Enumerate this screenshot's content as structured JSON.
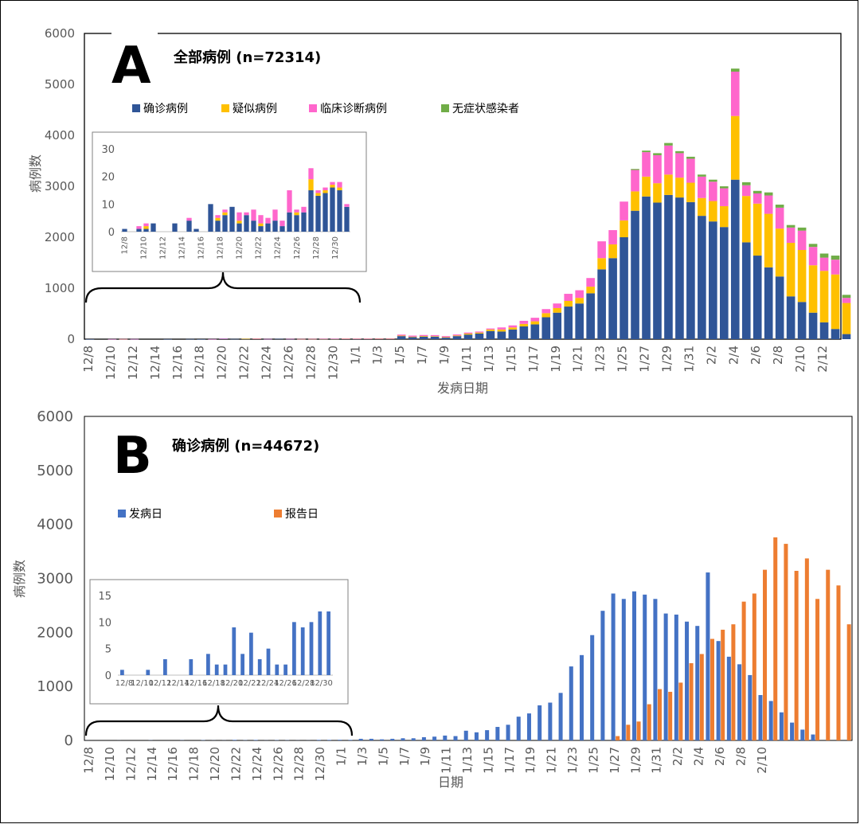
{
  "colors": {
    "confirmed": "#2f5597",
    "suspected": "#ffc000",
    "clinical": "#ff66cc",
    "asymptomatic": "#70ad47",
    "onset": "#4472c4",
    "report": "#ed7d31",
    "axis": "#595959"
  },
  "chart_data": [
    {
      "type": "bar",
      "stacked": true,
      "panel_label": "A",
      "title": "全部病例 (n=72314)",
      "xlabel": "发病日期",
      "ylabel": "病例数",
      "ylim": [
        0,
        6000
      ],
      "yticks": [
        0,
        1000,
        2000,
        3000,
        4000,
        5000,
        6000
      ],
      "xtick_labels": [
        "12/8",
        "12/10",
        "12/12",
        "12/14",
        "12/16",
        "12/18",
        "12/20",
        "12/22",
        "12/24",
        "12/26",
        "12/28",
        "12/30",
        "1/1",
        "1/3",
        "1/5",
        "1/7",
        "1/9",
        "1/11",
        "1/13",
        "1/15",
        "1/17",
        "1/19",
        "1/21",
        "1/23",
        "1/25",
        "1/27",
        "1/29",
        "1/31",
        "2/2",
        "2/4",
        "2/6",
        "2/8",
        "2/10",
        "2/12"
      ],
      "legend": [
        "确诊病例",
        "疑似病例",
        "临床诊断病例",
        "无症状感染者"
      ],
      "series": [
        {
          "name": "确诊病例",
          "values": [
            1,
            0,
            1,
            1,
            2,
            0,
            0,
            2,
            0,
            3,
            1,
            1,
            10,
            4,
            6,
            9,
            3,
            6,
            4,
            2,
            3,
            4,
            5,
            7,
            6,
            7,
            9,
            9,
            60,
            40,
            50,
            50,
            30,
            60,
            90,
            110,
            160,
            150,
            190,
            250,
            290,
            430,
            520,
            640,
            700,
            900,
            1370,
            1590,
            2000,
            2520,
            2800,
            2680,
            2830,
            2780,
            2690,
            2420,
            2310,
            2200,
            3130,
            1900,
            1640,
            1410,
            1230,
            840,
            730,
            520,
            330,
            200,
            100
          ],
          "values_note": "daily counts read from chart"
        },
        {
          "name": "疑似病例",
          "values": [
            0,
            0,
            0,
            1,
            0,
            0,
            0,
            0,
            0,
            0,
            0,
            0,
            0,
            0,
            1,
            1,
            0,
            0,
            0,
            1,
            1,
            1,
            1,
            1,
            2,
            1,
            2,
            2,
            10,
            10,
            12,
            10,
            10,
            12,
            20,
            20,
            30,
            40,
            40,
            50,
            60,
            80,
            90,
            110,
            110,
            130,
            220,
            270,
            330,
            380,
            390,
            380,
            400,
            390,
            380,
            350,
            400,
            410,
            1250,
            910,
            1020,
            1050,
            940,
            1050,
            1020,
            930,
            1010,
            1070,
            610
          ],
          "values_note": ""
        },
        {
          "name": "临床诊断病例",
          "values": [
            0,
            0,
            1,
            1,
            1,
            0,
            0,
            0,
            0,
            0,
            0,
            1,
            1,
            0,
            0,
            1,
            1,
            0,
            1,
            1,
            1,
            2,
            2,
            3,
            2,
            2,
            3,
            2,
            20,
            20,
            20,
            20,
            20,
            20,
            20,
            20,
            20,
            40,
            40,
            60,
            70,
            80,
            90,
            140,
            150,
            170,
            330,
            280,
            370,
            420,
            480,
            550,
            570,
            480,
            470,
            420,
            380,
            350,
            870,
            210,
            200,
            360,
            410,
            300,
            380,
            360,
            260,
            290,
            100
          ],
          "values_note": ""
        },
        {
          "name": "无症状感染者",
          "values": [
            0,
            0,
            0,
            0,
            0,
            0,
            0,
            0,
            0,
            0,
            0,
            0,
            0,
            0,
            0,
            0,
            0,
            0,
            0,
            0,
            0,
            0,
            0,
            0,
            0,
            0,
            0,
            0,
            0,
            0,
            0,
            0,
            0,
            0,
            0,
            0,
            0,
            0,
            0,
            0,
            0,
            0,
            0,
            0,
            0,
            0,
            0,
            0,
            0,
            20,
            30,
            40,
            50,
            40,
            40,
            40,
            40,
            40,
            60,
            60,
            50,
            60,
            60,
            50,
            60,
            60,
            80,
            80,
            60
          ],
          "values_note": ""
        }
      ],
      "inset": {
        "yticks": [
          0,
          10,
          20,
          30
        ],
        "ylim": [
          0,
          30
        ],
        "xtick_labels": [
          "12/8",
          "12/10",
          "12/12",
          "12/14",
          "12/16",
          "12/18",
          "12/20",
          "12/22",
          "12/24",
          "12/26",
          "12/28",
          "12/30"
        ],
        "series": [
          {
            "name": "确诊病例",
            "values": [
              1,
              0,
              1,
              1,
              2,
              0,
              0,
              2,
              0,
              3,
              1,
              1,
              10,
              4,
              6,
              9,
              3,
              6,
              4,
              2,
              3,
              4,
              5,
              7,
              6,
              7,
              9,
              9,
              0,
              0,
              0,
              0,
              0,
              0,
              0,
              0,
              0,
              0,
              0,
              0,
              0,
              0,
              0,
              0,
              0,
              0,
              0,
              0,
              0,
              0,
              0,
              0,
              0,
              0,
              0,
              0,
              0,
              0,
              0,
              0,
              0,
              0,
              0,
              0,
              0,
              0,
              0,
              0,
              0
            ]
          },
          {
            "name": "疑似病例",
            "values": [
              0,
              0,
              0,
              1,
              0,
              0,
              0,
              0,
              0,
              0,
              0,
              0,
              0,
              0,
              1,
              1,
              0,
              0,
              0,
              1,
              1,
              1,
              1,
              1,
              2,
              1,
              2,
              2
            ]
          },
          {
            "name": "临床诊断病例",
            "values": [
              0,
              0,
              1,
              1,
              1,
              0,
              0,
              0,
              0,
              0,
              0,
              1,
              1,
              0,
              0,
              1,
              1,
              0,
              1,
              1,
              1,
              2,
              2,
              3,
              2,
              2,
              3,
              2
            ]
          }
        ],
        "stack_values": [
          [
            1,
            0,
            0
          ],
          [
            0,
            0,
            0
          ],
          [
            1,
            0,
            1
          ],
          [
            1,
            1,
            1
          ],
          [
            3,
            0,
            0
          ],
          [
            0,
            0,
            0
          ],
          [
            0,
            0,
            0
          ],
          [
            3,
            0,
            0
          ],
          [
            0,
            0,
            0
          ],
          [
            4,
            0,
            1
          ],
          [
            1,
            0,
            0
          ],
          [
            0,
            0,
            0
          ],
          [
            10,
            0,
            0
          ],
          [
            4,
            1,
            1
          ],
          [
            6,
            1,
            1
          ],
          [
            9,
            0,
            0
          ],
          [
            3,
            1,
            3
          ],
          [
            6,
            0,
            1
          ],
          [
            4,
            0,
            4
          ],
          [
            2,
            1,
            3
          ],
          [
            3,
            0,
            2
          ],
          [
            4,
            0,
            4
          ],
          [
            2,
            0,
            2
          ],
          [
            7,
            0,
            8
          ],
          [
            6,
            1,
            1
          ],
          [
            7,
            0,
            2
          ],
          [
            15,
            4,
            4
          ],
          [
            13,
            1,
            1
          ],
          [
            14,
            1,
            1
          ],
          [
            16,
            1,
            1
          ],
          [
            15,
            1,
            2
          ],
          [
            9,
            0,
            1
          ]
        ]
      }
    },
    {
      "type": "bar",
      "stacked": false,
      "panel_label": "B",
      "title": "确诊病例 (n=44672)",
      "xlabel": "日期",
      "ylabel": "病例数",
      "ylim": [
        0,
        6000
      ],
      "yticks": [
        0,
        1000,
        2000,
        3000,
        4000,
        5000,
        6000
      ],
      "xtick_labels": [
        "12/8",
        "12/10",
        "12/12",
        "12/14",
        "12/16",
        "12/18",
        "12/20",
        "12/22",
        "12/24",
        "12/26",
        "12/28",
        "12/30",
        "1/1",
        "1/3",
        "1/5",
        "1/7",
        "1/9",
        "1/11",
        "1/13",
        "1/15",
        "1/17",
        "1/19",
        "1/21",
        "1/23",
        "1/25",
        "1/27",
        "1/29",
        "1/31",
        "2/2",
        "2/4",
        "2/6",
        "2/8",
        "2/10"
      ],
      "legend": [
        "发病日",
        "报告日"
      ],
      "series": [
        {
          "name": "发病日",
          "values": [
            1,
            0,
            0,
            1,
            0,
            0,
            3,
            0,
            0,
            3,
            0,
            5,
            2,
            2,
            10,
            4,
            9,
            2,
            5,
            4,
            2,
            2,
            10,
            10,
            12,
            10,
            30,
            30,
            20,
            30,
            40,
            40,
            60,
            70,
            90,
            80,
            180,
            150,
            190,
            250,
            290,
            440,
            500,
            650,
            700,
            880,
            1370,
            1580,
            1950,
            2400,
            2720,
            2620,
            2760,
            2700,
            2620,
            2350,
            2330,
            2200,
            2120,
            3110,
            1840,
            1550,
            1410,
            1210,
            840,
            730,
            520,
            330,
            200,
            110
          ],
          "values_note": ""
        },
        {
          "name": "报告日",
          "values": [
            0,
            0,
            0,
            0,
            0,
            0,
            0,
            0,
            0,
            0,
            0,
            0,
            0,
            0,
            0,
            0,
            0,
            0,
            0,
            0,
            0,
            0,
            0,
            0,
            0,
            0,
            0,
            0,
            0,
            0,
            0,
            0,
            0,
            0,
            0,
            0,
            0,
            0,
            0,
            0,
            0,
            0,
            0,
            0,
            0,
            0,
            0,
            0,
            0,
            0,
            80,
            290,
            350,
            670,
            950,
            900,
            1070,
            1430,
            1600,
            1880,
            2050,
            2150,
            2570,
            2720,
            3160,
            3760,
            3640,
            3140,
            3370,
            2620,
            3160,
            2870,
            2150
          ],
          "values_note": ""
        }
      ],
      "inset": {
        "yticks": [
          0,
          5,
          10,
          15
        ],
        "ylim": [
          0,
          15
        ],
        "xtick_labels": [
          "12/8",
          "12/10",
          "12/12",
          "12/14",
          "12/16",
          "12/18",
          "12/20",
          "12/22",
          "12/24",
          "12/26",
          "12/28",
          "12/30"
        ],
        "values": [
          1,
          0,
          0,
          1,
          0,
          3,
          0,
          0,
          3,
          0,
          4,
          2,
          2,
          9,
          4,
          8,
          3,
          5,
          2,
          2,
          10,
          9,
          10,
          12,
          12
        ]
      }
    }
  ]
}
